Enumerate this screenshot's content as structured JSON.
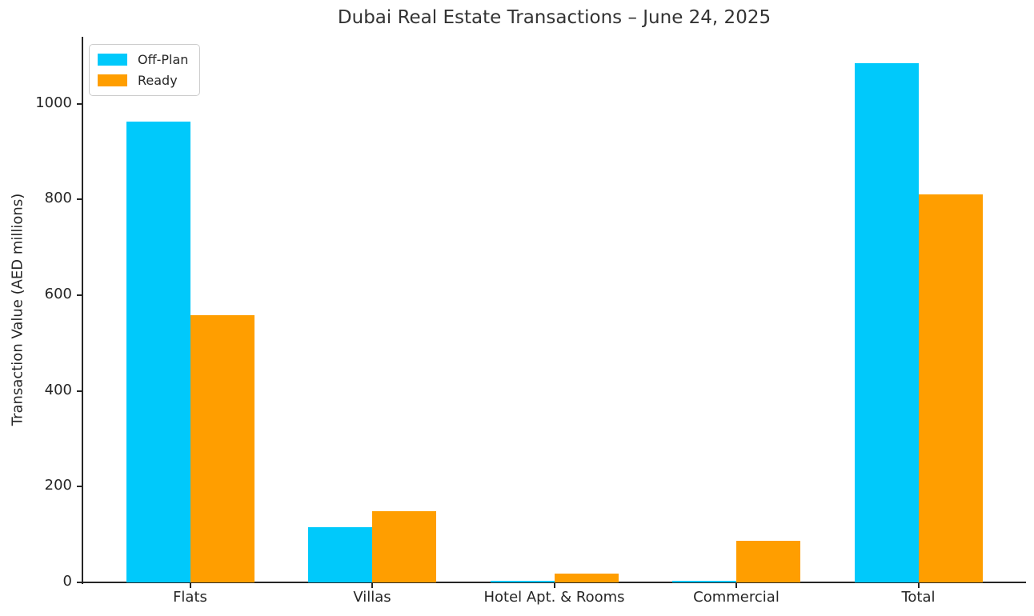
{
  "chart_data": {
    "type": "bar",
    "title": "Dubai Real Estate Transactions – June 24, 2025",
    "xlabel": "",
    "ylabel": "Transaction Value (AED millions)",
    "categories": [
      "Flats",
      "Villas",
      "Hotel Apt. & Rooms",
      "Commercial",
      "Total"
    ],
    "series": [
      {
        "name": "Off-Plan",
        "color": "#00c9fb",
        "values": [
          963,
          115,
          3,
          4,
          1085
        ]
      },
      {
        "name": "Ready",
        "color": "#ff9e00",
        "values": [
          558,
          148,
          18,
          87,
          811
        ]
      }
    ],
    "yticks": [
      0,
      200,
      400,
      600,
      800,
      1000
    ],
    "ylim": [
      0,
      1140
    ],
    "grid": false,
    "legend_position": "upper left",
    "axis_color": "#262626",
    "title_color": "#333333"
  }
}
